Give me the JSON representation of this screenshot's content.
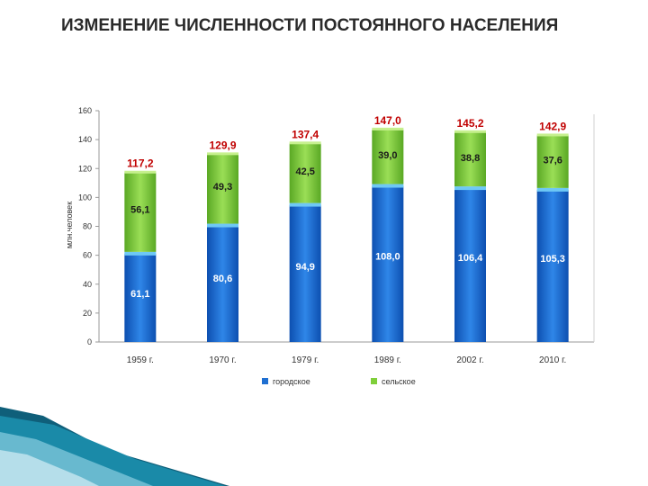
{
  "title": "ИЗМЕНЕНИЕ ЧИСЛЕННОСТИ ПОСТОЯННОГО НАСЕЛЕНИЯ",
  "chart_data": {
    "type": "bar",
    "stacked": true,
    "categories": [
      "1959 г.",
      "1970 г.",
      "1979 г.",
      "1989 г.",
      "2002 г.",
      "2010 г."
    ],
    "series": [
      {
        "name": "городское",
        "color": "#1f6fd1",
        "values": [
          61.1,
          80.6,
          94.9,
          108.0,
          106.4,
          105.3
        ],
        "labels": [
          "61,1",
          "80,6",
          "94,9",
          "108,0",
          "106,4",
          "105,3"
        ]
      },
      {
        "name": "сельское",
        "color": "#7fcf3a",
        "values": [
          56.1,
          49.3,
          42.5,
          39.0,
          38.8,
          37.6
        ],
        "labels": [
          "56,1",
          "49,3",
          "42,5",
          "39,0",
          "38,8",
          "37,6"
        ]
      }
    ],
    "totals": [
      "117,2",
      "129,9",
      "137,4",
      "147,0",
      "145,2",
      "142,9"
    ],
    "total_values": [
      117.2,
      129.9,
      137.4,
      147.0,
      145.2,
      142.9
    ],
    "ylabel": "млн.человек",
    "xlabel": "",
    "ylim": [
      0,
      160
    ],
    "yticks": [
      0,
      20,
      40,
      60,
      80,
      100,
      120,
      140,
      160
    ],
    "legend_position": "bottom",
    "grid": false,
    "total_label_color": "#c00000"
  }
}
